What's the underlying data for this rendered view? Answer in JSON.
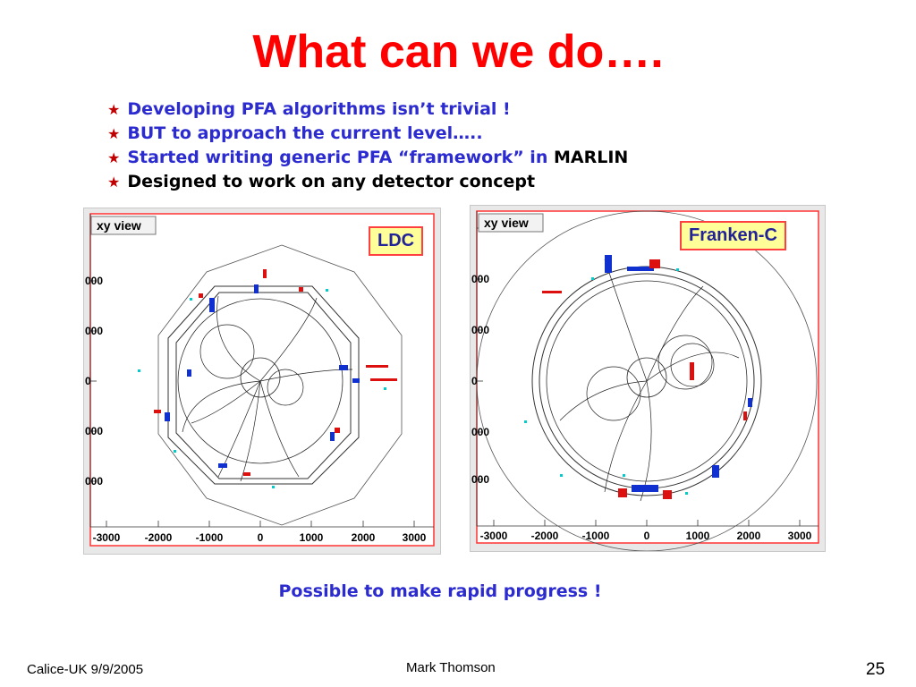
{
  "slide": {
    "title": "What can we do….",
    "bullets": [
      {
        "text": "Developing PFA algorithms isn’t trivial !",
        "suffix": ""
      },
      {
        "text": "BUT to approach the current level…..",
        "suffix": ""
      },
      {
        "text": "Started writing generic PFA “framework” in ",
        "suffix": "MARLIN"
      },
      {
        "text": "Designed to work on any detector concept",
        "suffix": ""
      }
    ],
    "conclusion": "Possible to make rapid progress !",
    "footer": {
      "left": "Calice-UK  9/9/2005",
      "center": "Mark Thomson",
      "page": "25"
    },
    "colors": {
      "title": "#ff0000",
      "bullet_text": "#2b2bd0",
      "bullet_star": "#c00000",
      "tag_bg": "#ffff99"
    }
  },
  "plots": [
    {
      "view_label": "xy view",
      "tag": "LDC",
      "x_ticks": [
        "-3000",
        "-2000",
        "-1000",
        "0",
        "1000",
        "2000",
        "3000"
      ],
      "y_ticks": [
        "000",
        "000",
        "000",
        "0",
        "000",
        "000",
        "000"
      ]
    },
    {
      "view_label": "xy view",
      "tag": "Franken-C",
      "x_ticks": [
        "-3000",
        "-2000",
        "-1000",
        "0",
        "1000",
        "2000",
        "3000"
      ],
      "y_ticks": [
        "000",
        "000",
        "000",
        "0",
        "000",
        "000",
        "000"
      ]
    }
  ]
}
